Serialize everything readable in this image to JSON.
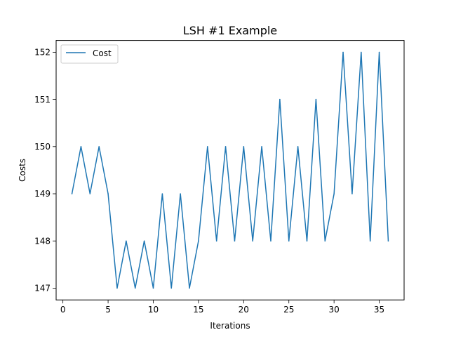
{
  "chart_data": {
    "type": "line",
    "title": "LSH #1 Example",
    "xlabel": "Iterations",
    "ylabel": "Costs",
    "xlim": [
      -0.75,
      37.75
    ],
    "ylim": [
      146.75,
      152.25
    ],
    "xticks": [
      0,
      5,
      10,
      15,
      20,
      25,
      30,
      35
    ],
    "yticks": [
      147,
      148,
      149,
      150,
      151,
      152
    ],
    "grid": false,
    "legend_position": "top-left",
    "series": [
      {
        "name": "Cost",
        "color": "#1f77b4",
        "x": [
          1,
          2,
          3,
          4,
          5,
          6,
          7,
          8,
          9,
          10,
          11,
          12,
          13,
          14,
          15,
          16,
          17,
          18,
          19,
          20,
          21,
          22,
          23,
          24,
          25,
          26,
          27,
          28,
          29,
          30,
          31,
          32,
          33,
          34,
          35,
          36
        ],
        "y": [
          149,
          150,
          149,
          150,
          149,
          147,
          148,
          147,
          148,
          147,
          149,
          147,
          149,
          147,
          148,
          150,
          148,
          150,
          148,
          150,
          148,
          150,
          148,
          151,
          148,
          150,
          148,
          151,
          148,
          149,
          152,
          149,
          152,
          148,
          152,
          148
        ]
      }
    ]
  }
}
